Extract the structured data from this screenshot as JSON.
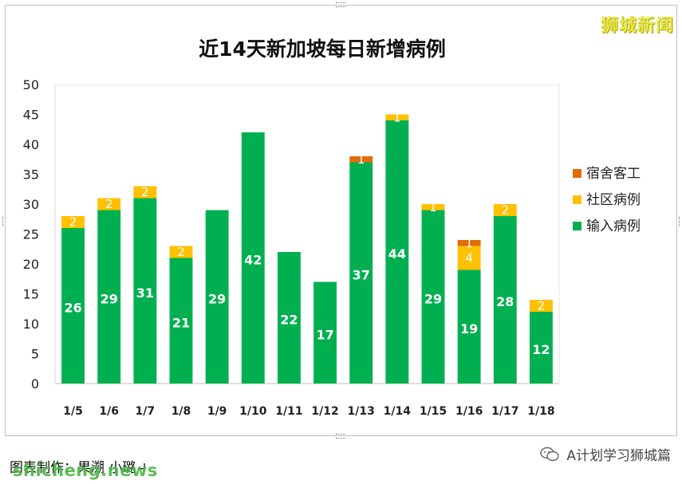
{
  "chart_data": {
    "type": "bar",
    "stacked": true,
    "title": "近14天新加坡每日新增病例",
    "categories": [
      "1/5",
      "1/6",
      "1/7",
      "1/8",
      "1/9",
      "1/10",
      "1/11",
      "1/12",
      "1/13",
      "1/14",
      "1/15",
      "1/16",
      "1/17",
      "1/18"
    ],
    "series": [
      {
        "name": "输入病例",
        "color": "#00b050",
        "values": [
          26,
          29,
          31,
          21,
          29,
          42,
          22,
          17,
          37,
          44,
          29,
          19,
          28,
          12
        ]
      },
      {
        "name": "社区病例",
        "color": "#ffc000",
        "values": [
          2,
          2,
          2,
          2,
          0,
          0,
          0,
          0,
          0,
          1,
          1,
          4,
          2,
          2
        ]
      },
      {
        "name": "宿舍客工",
        "color": "#e36c09",
        "values": [
          0,
          0,
          0,
          0,
          0,
          0,
          0,
          0,
          1,
          0,
          0,
          1,
          0,
          0
        ]
      }
    ],
    "ylim": [
      0,
      50
    ],
    "yticks": [
      0,
      5,
      10,
      15,
      20,
      25,
      30,
      35,
      40,
      45,
      50
    ],
    "legend_position": "right",
    "grid": false
  },
  "watermark_top": "狮城新闻",
  "caption": "图表制作：果溯 小璐↵",
  "site_mark": "shicheng.news",
  "wechat_account": "A计划学习狮城篇"
}
